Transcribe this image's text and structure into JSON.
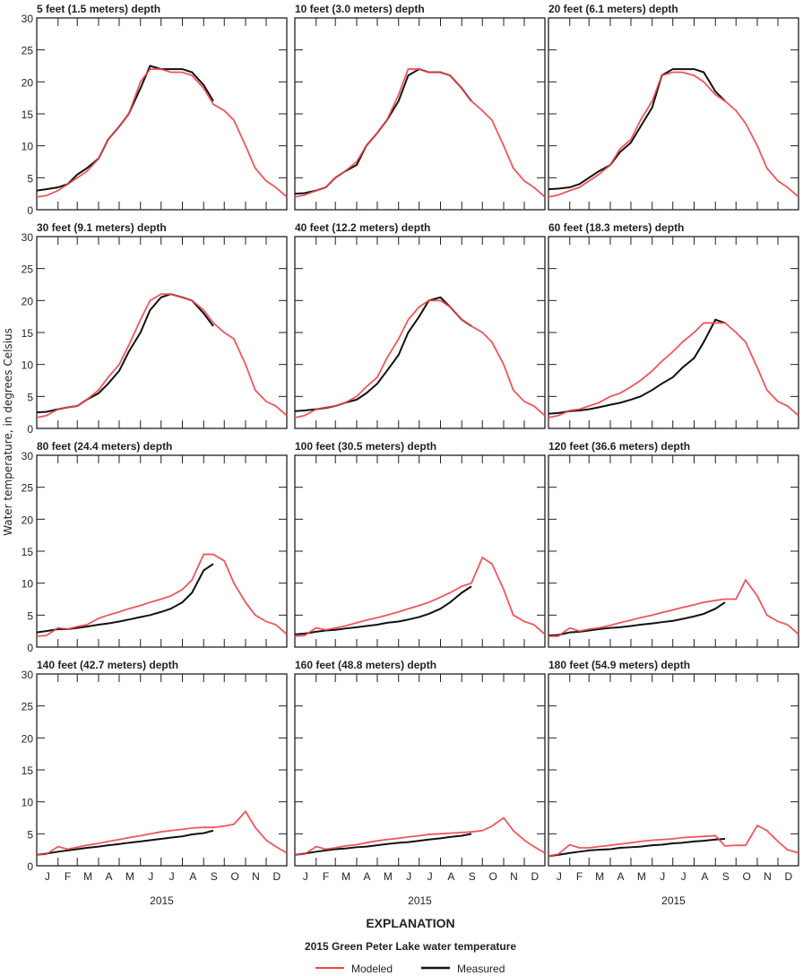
{
  "colors": {
    "modeled": "#ee4449",
    "measured": "#111111",
    "axis": "#231f20"
  },
  "chart_data": {
    "type": "line",
    "ylabel": "Water temperature, in degrees Celsius",
    "xlabel": "2015",
    "ylim": [
      0,
      30
    ],
    "yticks": [
      0,
      5,
      10,
      15,
      20,
      25,
      30
    ],
    "xlim_day_of_year": [
      1,
      365
    ],
    "month_labels": [
      "J",
      "F",
      "M",
      "A",
      "M",
      "J",
      "J",
      "A",
      "S",
      "O",
      "N",
      "D"
    ],
    "explanation_title": "EXPLANATION",
    "legend_title": "2015 Green Peter Lake water temperature",
    "legend": [
      {
        "key": "modeled",
        "label": "Modeled"
      },
      {
        "key": "measured",
        "label": "Measured"
      }
    ],
    "x_days": [
      1,
      15,
      32,
      46,
      60,
      74,
      91,
      105,
      121,
      135,
      152,
      166,
      182,
      196,
      213,
      227,
      244,
      258,
      274,
      288,
      305,
      319,
      335,
      349,
      365
    ],
    "panels": [
      {
        "title": "5 feet (1.5 meters) depth",
        "modeled": [
          2,
          2.2,
          3,
          4,
          5,
          6,
          8,
          11,
          13,
          15,
          20,
          22,
          22,
          21.5,
          21.5,
          21,
          19,
          16.5,
          15.5,
          14,
          10,
          6.5,
          4.5,
          3.5,
          2
        ],
        "measured": [
          3,
          3.2,
          3.5,
          4,
          5.5,
          6.5,
          8,
          11,
          13,
          15,
          19,
          22.5,
          22,
          22,
          22,
          21.5,
          19.5,
          17
        ]
      },
      {
        "title": "10 feet (3.0 meters) depth",
        "modeled": [
          2,
          2.3,
          3,
          3.5,
          5,
          6,
          7.5,
          10,
          12,
          14,
          18,
          22,
          22,
          21.5,
          21.5,
          21,
          19,
          17,
          15.5,
          14,
          10,
          6.5,
          4.5,
          3.5,
          2
        ],
        "measured": [
          2.5,
          2.6,
          3,
          3.5,
          5,
          6,
          7,
          10,
          12,
          14,
          17,
          21,
          22,
          21.5,
          21.5,
          21,
          19,
          17
        ]
      },
      {
        "title": "20 feet (6.1 meters) depth",
        "modeled": [
          2,
          2.3,
          3,
          3.5,
          4.5,
          5.5,
          7,
          9.5,
          11,
          14,
          17,
          21,
          21.5,
          21.5,
          21,
          20,
          18,
          17,
          15.5,
          13.5,
          10,
          6.5,
          4.5,
          3.5,
          2
        ],
        "measured": [
          3.2,
          3.3,
          3.5,
          4,
          5,
          6,
          7,
          9,
          10.5,
          13,
          16,
          21,
          22,
          22,
          22,
          21.5,
          18.5,
          17
        ]
      },
      {
        "title": "30 feet (9.1 meters) depth",
        "modeled": [
          1.7,
          2,
          3,
          3.3,
          3.5,
          4.5,
          6,
          8,
          10,
          13,
          17,
          20,
          21,
          21,
          20.5,
          20,
          18.5,
          16.5,
          15,
          14,
          10,
          6,
          4.2,
          3.5,
          2
        ],
        "measured": [
          2.5,
          2.6,
          3,
          3.3,
          3.5,
          4.5,
          5.5,
          7,
          9,
          12,
          15,
          18.5,
          20.5,
          21,
          20.5,
          20,
          18,
          16
        ]
      },
      {
        "title": "40 feet (12.2 meters) depth",
        "modeled": [
          1.7,
          2,
          3,
          3.3,
          3.5,
          4,
          5,
          6.5,
          8,
          11,
          14,
          17,
          19,
          20,
          20,
          19,
          17,
          16,
          15,
          13.5,
          10,
          6,
          4.2,
          3.5,
          2
        ],
        "measured": [
          2.7,
          2.8,
          3,
          3.2,
          3.5,
          4,
          4.5,
          5.5,
          7,
          9,
          11.5,
          15,
          17.5,
          20,
          20.5,
          19,
          17,
          16
        ]
      },
      {
        "title": "60 feet (18.3 meters) depth",
        "modeled": [
          1.7,
          2,
          2.8,
          3,
          3.5,
          4,
          5,
          5.5,
          6.5,
          7.5,
          9,
          10.5,
          12,
          13.5,
          15,
          16.5,
          16.5,
          16.5,
          15,
          13.5,
          9.5,
          6,
          4.2,
          3.5,
          2
        ],
        "measured": [
          2.3,
          2.4,
          2.7,
          2.8,
          3,
          3.3,
          3.7,
          4,
          4.5,
          5,
          6,
          7,
          8,
          9.5,
          11,
          13.5,
          17,
          16.5
        ]
      },
      {
        "title": "80 feet (24.4 meters) depth",
        "modeled": [
          1.7,
          1.8,
          3,
          2.8,
          3.2,
          3.5,
          4.5,
          5,
          5.5,
          6,
          6.5,
          7,
          7.5,
          8,
          9,
          10.5,
          14.5,
          14.5,
          13.5,
          10,
          7,
          5,
          4,
          3.5,
          2
        ],
        "measured": [
          2.3,
          2.5,
          2.8,
          2.8,
          3,
          3.2,
          3.5,
          3.7,
          4,
          4.3,
          4.7,
          5,
          5.5,
          6,
          7,
          8.5,
          12,
          13
        ]
      },
      {
        "title": "100 feet (30.5 meters) depth",
        "modeled": [
          1.7,
          1.8,
          3,
          2.7,
          3,
          3.3,
          3.8,
          4.2,
          4.6,
          5,
          5.5,
          6,
          6.5,
          7,
          7.8,
          8.5,
          9.5,
          10,
          14,
          13,
          9,
          5,
          4,
          3.5,
          2
        ],
        "measured": [
          2,
          2.1,
          2.4,
          2.6,
          2.7,
          2.9,
          3.1,
          3.3,
          3.5,
          3.8,
          4,
          4.3,
          4.7,
          5.2,
          6,
          7,
          8.5,
          9.5
        ]
      },
      {
        "title": "120 feet (36.6 meters) depth",
        "modeled": [
          1.7,
          1.7,
          3,
          2.5,
          2.8,
          3,
          3.4,
          3.8,
          4.2,
          4.6,
          5,
          5.4,
          5.8,
          6.2,
          6.6,
          7,
          7.3,
          7.5,
          7.5,
          10.5,
          8,
          5,
          4,
          3.5,
          2
        ],
        "measured": [
          1.8,
          1.9,
          2.3,
          2.4,
          2.6,
          2.8,
          3,
          3.1,
          3.3,
          3.5,
          3.7,
          3.9,
          4.1,
          4.4,
          4.8,
          5.2,
          6,
          7
        ]
      },
      {
        "title": "140 feet (42.7 meters) depth",
        "modeled": [
          1.7,
          1.8,
          3,
          2.6,
          2.9,
          3.2,
          3.5,
          3.8,
          4.1,
          4.4,
          4.7,
          5,
          5.3,
          5.5,
          5.7,
          5.9,
          6,
          6,
          6.2,
          6.5,
          8.5,
          6,
          4,
          3,
          2
        ],
        "measured": [
          1.7,
          1.9,
          2.2,
          2.4,
          2.6,
          2.8,
          3,
          3.2,
          3.4,
          3.6,
          3.8,
          4,
          4.2,
          4.4,
          4.6,
          4.9,
          5.1,
          5.5
        ]
      },
      {
        "title": "160 feet (48.8 meters) depth",
        "modeled": [
          1.7,
          1.8,
          3,
          2.6,
          2.8,
          3.1,
          3.3,
          3.6,
          3.9,
          4.1,
          4.3,
          4.5,
          4.7,
          4.9,
          5,
          5.1,
          5.2,
          5.3,
          5.5,
          6.2,
          7.5,
          5.5,
          4,
          3,
          2
        ],
        "measured": [
          1.7,
          1.9,
          2.2,
          2.4,
          2.6,
          2.7,
          2.9,
          3,
          3.2,
          3.4,
          3.6,
          3.7,
          3.9,
          4.1,
          4.3,
          4.5,
          4.7,
          5
        ]
      },
      {
        "title": "180 feet (54.9 meters) depth",
        "modeled": [
          1.5,
          1.8,
          3.3,
          2.8,
          2.8,
          3,
          3.2,
          3.4,
          3.6,
          3.8,
          4,
          4.1,
          4.2,
          4.4,
          4.5,
          4.6,
          4.7,
          3.1,
          3.2,
          3.2,
          6.3,
          5.5,
          3.8,
          2.5,
          2
        ],
        "measured": [
          1.5,
          1.7,
          2,
          2.2,
          2.4,
          2.5,
          2.6,
          2.8,
          2.9,
          3,
          3.2,
          3.3,
          3.5,
          3.6,
          3.8,
          3.9,
          4.1,
          4.2
        ]
      }
    ]
  }
}
